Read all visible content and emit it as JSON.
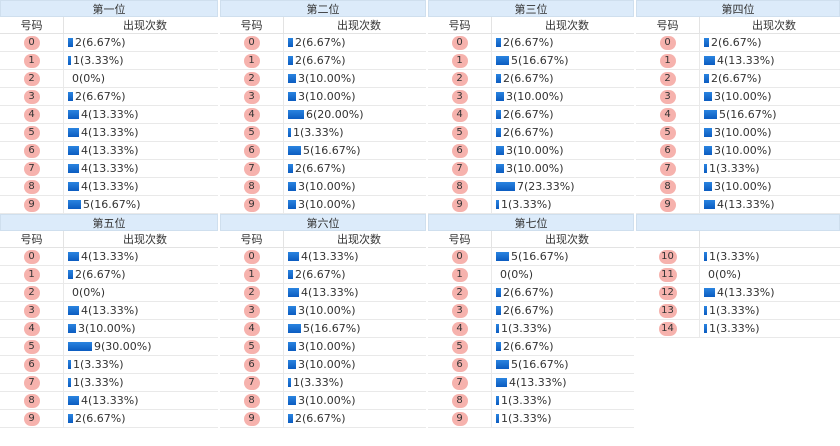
{
  "headers": {
    "number": "号码",
    "count": "出现次数"
  },
  "sections": [
    {
      "title": "第一位",
      "rows": [
        {
          "n": "0",
          "v": "2(6.67%)",
          "p": 6.67
        },
        {
          "n": "1",
          "v": "1(3.33%)",
          "p": 3.33
        },
        {
          "n": "2",
          "v": "0(0%)",
          "p": 0
        },
        {
          "n": "3",
          "v": "2(6.67%)",
          "p": 6.67
        },
        {
          "n": "4",
          "v": "4(13.33%)",
          "p": 13.33
        },
        {
          "n": "5",
          "v": "4(13.33%)",
          "p": 13.33
        },
        {
          "n": "6",
          "v": "4(13.33%)",
          "p": 13.33
        },
        {
          "n": "7",
          "v": "4(13.33%)",
          "p": 13.33
        },
        {
          "n": "8",
          "v": "4(13.33%)",
          "p": 13.33
        },
        {
          "n": "9",
          "v": "5(16.67%)",
          "p": 16.67
        }
      ]
    },
    {
      "title": "第二位",
      "rows": [
        {
          "n": "0",
          "v": "2(6.67%)",
          "p": 6.67
        },
        {
          "n": "1",
          "v": "2(6.67%)",
          "p": 6.67
        },
        {
          "n": "2",
          "v": "3(10.00%)",
          "p": 10
        },
        {
          "n": "3",
          "v": "3(10.00%)",
          "p": 10
        },
        {
          "n": "4",
          "v": "6(20.00%)",
          "p": 20
        },
        {
          "n": "5",
          "v": "1(3.33%)",
          "p": 3.33
        },
        {
          "n": "6",
          "v": "5(16.67%)",
          "p": 16.67
        },
        {
          "n": "7",
          "v": "2(6.67%)",
          "p": 6.67
        },
        {
          "n": "8",
          "v": "3(10.00%)",
          "p": 10
        },
        {
          "n": "9",
          "v": "3(10.00%)",
          "p": 10
        }
      ]
    },
    {
      "title": "第三位",
      "rows": [
        {
          "n": "0",
          "v": "2(6.67%)",
          "p": 6.67
        },
        {
          "n": "1",
          "v": "5(16.67%)",
          "p": 16.67
        },
        {
          "n": "2",
          "v": "2(6.67%)",
          "p": 6.67
        },
        {
          "n": "3",
          "v": "3(10.00%)",
          "p": 10
        },
        {
          "n": "4",
          "v": "2(6.67%)",
          "p": 6.67
        },
        {
          "n": "5",
          "v": "2(6.67%)",
          "p": 6.67
        },
        {
          "n": "6",
          "v": "3(10.00%)",
          "p": 10
        },
        {
          "n": "7",
          "v": "3(10.00%)",
          "p": 10
        },
        {
          "n": "8",
          "v": "7(23.33%)",
          "p": 23.33
        },
        {
          "n": "9",
          "v": "1(3.33%)",
          "p": 3.33
        }
      ]
    },
    {
      "title": "第四位",
      "rows": [
        {
          "n": "0",
          "v": "2(6.67%)",
          "p": 6.67
        },
        {
          "n": "1",
          "v": "4(13.33%)",
          "p": 13.33
        },
        {
          "n": "2",
          "v": "2(6.67%)",
          "p": 6.67
        },
        {
          "n": "3",
          "v": "3(10.00%)",
          "p": 10
        },
        {
          "n": "4",
          "v": "5(16.67%)",
          "p": 16.67
        },
        {
          "n": "5",
          "v": "3(10.00%)",
          "p": 10
        },
        {
          "n": "6",
          "v": "3(10.00%)",
          "p": 10
        },
        {
          "n": "7",
          "v": "1(3.33%)",
          "p": 3.33
        },
        {
          "n": "8",
          "v": "3(10.00%)",
          "p": 10
        },
        {
          "n": "9",
          "v": "4(13.33%)",
          "p": 13.33
        }
      ]
    },
    {
      "title": "第五位",
      "rows": [
        {
          "n": "0",
          "v": "4(13.33%)",
          "p": 13.33
        },
        {
          "n": "1",
          "v": "2(6.67%)",
          "p": 6.67
        },
        {
          "n": "2",
          "v": "0(0%)",
          "p": 0
        },
        {
          "n": "3",
          "v": "4(13.33%)",
          "p": 13.33
        },
        {
          "n": "4",
          "v": "3(10.00%)",
          "p": 10
        },
        {
          "n": "5",
          "v": "9(30.00%)",
          "p": 30
        },
        {
          "n": "6",
          "v": "1(3.33%)",
          "p": 3.33
        },
        {
          "n": "7",
          "v": "1(3.33%)",
          "p": 3.33
        },
        {
          "n": "8",
          "v": "4(13.33%)",
          "p": 13.33
        },
        {
          "n": "9",
          "v": "2(6.67%)",
          "p": 6.67
        }
      ]
    },
    {
      "title": "第六位",
      "rows": [
        {
          "n": "0",
          "v": "4(13.33%)",
          "p": 13.33
        },
        {
          "n": "1",
          "v": "2(6.67%)",
          "p": 6.67
        },
        {
          "n": "2",
          "v": "4(13.33%)",
          "p": 13.33
        },
        {
          "n": "3",
          "v": "3(10.00%)",
          "p": 10
        },
        {
          "n": "4",
          "v": "5(16.67%)",
          "p": 16.67
        },
        {
          "n": "5",
          "v": "3(10.00%)",
          "p": 10
        },
        {
          "n": "6",
          "v": "3(10.00%)",
          "p": 10
        },
        {
          "n": "7",
          "v": "1(3.33%)",
          "p": 3.33
        },
        {
          "n": "8",
          "v": "3(10.00%)",
          "p": 10
        },
        {
          "n": "9",
          "v": "2(6.67%)",
          "p": 6.67
        }
      ]
    },
    {
      "title": "第七位",
      "rows": [
        {
          "n": "0",
          "v": "5(16.67%)",
          "p": 16.67
        },
        {
          "n": "1",
          "v": "0(0%)",
          "p": 0
        },
        {
          "n": "2",
          "v": "2(6.67%)",
          "p": 6.67
        },
        {
          "n": "3",
          "v": "2(6.67%)",
          "p": 6.67
        },
        {
          "n": "4",
          "v": "1(3.33%)",
          "p": 3.33
        },
        {
          "n": "5",
          "v": "2(6.67%)",
          "p": 6.67
        },
        {
          "n": "6",
          "v": "5(16.67%)",
          "p": 16.67
        },
        {
          "n": "7",
          "v": "4(13.33%)",
          "p": 13.33
        },
        {
          "n": "8",
          "v": "1(3.33%)",
          "p": 3.33
        },
        {
          "n": "9",
          "v": "1(3.33%)",
          "p": 3.33
        }
      ]
    },
    {
      "title": "",
      "rows": [
        {
          "n": "10",
          "v": "1(3.33%)",
          "p": 3.33
        },
        {
          "n": "11",
          "v": "0(0%)",
          "p": 0
        },
        {
          "n": "12",
          "v": "4(13.33%)",
          "p": 13.33
        },
        {
          "n": "13",
          "v": "1(3.33%)",
          "p": 3.33
        },
        {
          "n": "14",
          "v": "1(3.33%)",
          "p": 3.33
        }
      ],
      "no_header": true
    }
  ],
  "colors": {
    "bar": "#1565c0",
    "ball": "#f6b2ad",
    "title_bg": "#dcebfa"
  }
}
